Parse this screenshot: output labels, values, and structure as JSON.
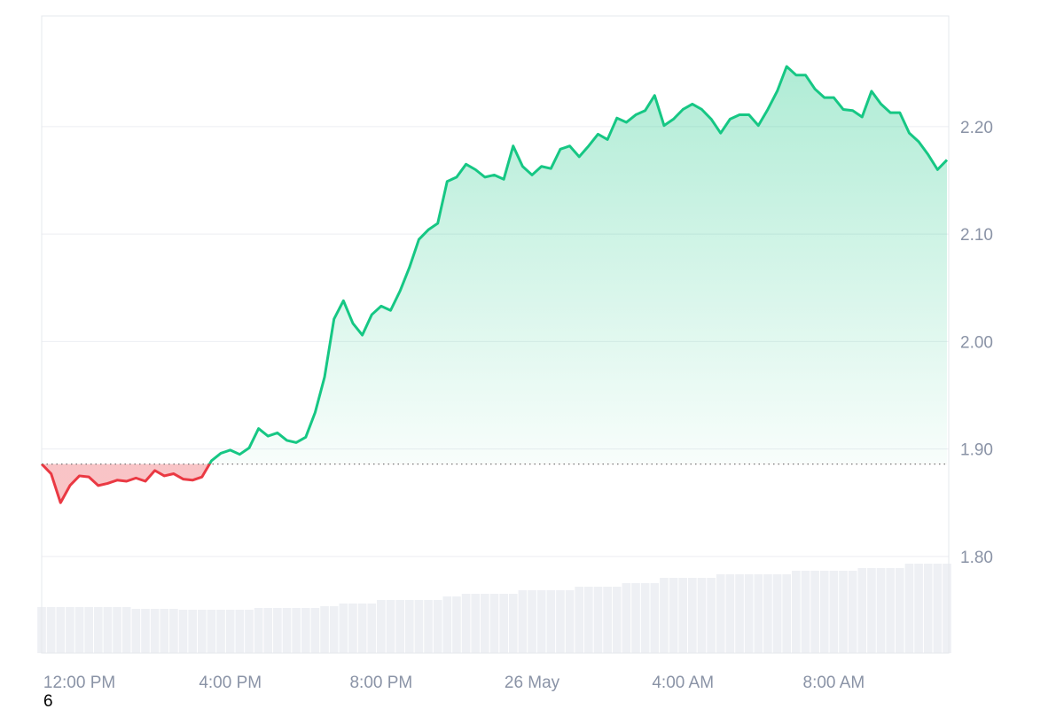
{
  "chart_data": {
    "type": "line",
    "categories": [
      null,
      null,
      null,
      null,
      "12:00 PM",
      null,
      null,
      null,
      null,
      null,
      null,
      null,
      null,
      null,
      null,
      null,
      null,
      null,
      null,
      null,
      "4:00 PM",
      null,
      null,
      null,
      null,
      null,
      null,
      null,
      null,
      null,
      null,
      null,
      null,
      null,
      null,
      null,
      "8:00 PM",
      null,
      null,
      null,
      null,
      null,
      null,
      null,
      null,
      null,
      null,
      null,
      null,
      null,
      null,
      null,
      "26 May",
      null,
      null,
      null,
      null,
      null,
      null,
      null,
      null,
      null,
      null,
      null,
      null,
      null,
      null,
      null,
      "4:00 AM",
      null,
      null,
      null,
      null,
      null,
      null,
      null,
      null,
      null,
      null,
      null,
      null,
      null,
      null,
      null,
      "8:00 AM",
      null,
      null,
      null,
      null,
      null,
      null,
      null,
      null,
      null,
      null,
      null,
      null
    ],
    "values": [
      1.886,
      1.877,
      1.85,
      1.866,
      1.875,
      1.874,
      1.866,
      1.868,
      1.871,
      1.87,
      1.873,
      1.87,
      1.88,
      1.875,
      1.877,
      1.872,
      1.871,
      1.874,
      1.889,
      1.896,
      1.899,
      1.895,
      1.901,
      1.919,
      1.912,
      1.915,
      1.908,
      1.906,
      1.911,
      1.934,
      1.967,
      2.021,
      2.038,
      2.017,
      2.006,
      2.025,
      2.033,
      2.029,
      2.047,
      2.069,
      2.095,
      2.104,
      2.11,
      2.149,
      2.153,
      2.165,
      2.16,
      2.153,
      2.155,
      2.151,
      2.182,
      2.163,
      2.155,
      2.163,
      2.161,
      2.179,
      2.182,
      2.172,
      2.182,
      2.193,
      2.188,
      2.208,
      2.204,
      2.211,
      2.215,
      2.229,
      2.201,
      2.207,
      2.216,
      2.221,
      2.216,
      2.207,
      2.194,
      2.207,
      2.211,
      2.211,
      2.201,
      2.216,
      2.233,
      2.256,
      2.248,
      2.248,
      2.235,
      2.227,
      2.227,
      2.216,
      2.215,
      2.209,
      2.233,
      2.221,
      2.213,
      2.213,
      2.194,
      2.186,
      2.174,
      2.16,
      2.169
    ],
    "volume": [
      52,
      52,
      52,
      52,
      52,
      52,
      52,
      52,
      52,
      52,
      50,
      50,
      50,
      50,
      50,
      49,
      49,
      49,
      49,
      49,
      49,
      49,
      49,
      51,
      51,
      51,
      51,
      51,
      51,
      51,
      53,
      53,
      56,
      56,
      56,
      56,
      60,
      60,
      60,
      60,
      60,
      60,
      60,
      64,
      64,
      67,
      67,
      67,
      67,
      67,
      67,
      71,
      71,
      71,
      71,
      71,
      71,
      75,
      75,
      75,
      75,
      75,
      79,
      79,
      79,
      79,
      85,
      85,
      85,
      85,
      85,
      85,
      89,
      89,
      89,
      89,
      89,
      89,
      89,
      89,
      93,
      93,
      93,
      93,
      93,
      93,
      93,
      96,
      96,
      96,
      96,
      96,
      101,
      101,
      101,
      101,
      101
    ],
    "baseline": 1.886,
    "up_color": "#16c784",
    "down_color": "#ea3943",
    "volume_color": "#eef0f4",
    "ylim": [
      1.71,
      2.303
    ],
    "yticks": [
      {
        "value": 1.8,
        "label": "1.80"
      },
      {
        "value": 1.9,
        "label": "1.90"
      },
      {
        "value": 2.0,
        "label": "2.00"
      },
      {
        "value": 2.1,
        "label": "2.10"
      },
      {
        "value": 2.2,
        "label": "2.20"
      }
    ],
    "grid": true,
    "footnote": "6"
  }
}
